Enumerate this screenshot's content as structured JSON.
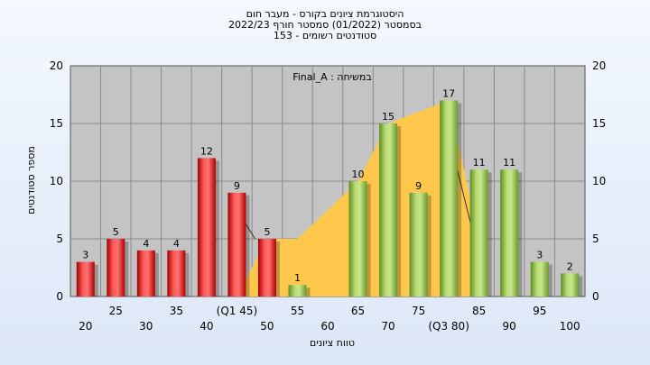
{
  "title_lines": [
    "היסטוגרמת ציונים בקורס - מעבר חום",
    "בסמסטר (01/2022) סמסטר חורף 2022/23",
    "סטודנטים רשומים - 153"
  ],
  "chart_data": {
    "type": "bar",
    "annotation": "Final_A : במשיחה",
    "xlabel": "טווח ציונים",
    "ylabel": "מספר סטודנטים",
    "ylim": [
      0,
      20
    ],
    "yticks": [
      0,
      5,
      10,
      15,
      20
    ],
    "grid": true,
    "bars": [
      {
        "x": 20,
        "value": 3,
        "label": "3",
        "color": "red"
      },
      {
        "x": 25,
        "value": 5,
        "label": "5",
        "color": "red"
      },
      {
        "x": 30,
        "value": 4,
        "label": "4",
        "color": "red"
      },
      {
        "x": 35,
        "value": 4,
        "label": "4",
        "color": "red"
      },
      {
        "x": 40,
        "value": 12,
        "label": "12",
        "color": "red"
      },
      {
        "x": 45,
        "value": 9,
        "label": "9",
        "color": "red"
      },
      {
        "x": 50,
        "value": 5,
        "label": "5",
        "color": "red"
      },
      {
        "x": 55,
        "value": 1,
        "label": "1",
        "color": "green"
      },
      {
        "x": 60,
        "value": 0,
        "label": "",
        "color": "green"
      },
      {
        "x": 65,
        "value": 10,
        "label": "10",
        "color": "green"
      },
      {
        "x": 70,
        "value": 15,
        "label": "15",
        "color": "green"
      },
      {
        "x": 75,
        "value": 9,
        "label": "9",
        "color": "green"
      },
      {
        "x": 80,
        "value": 17,
        "label": "17",
        "color": "green"
      },
      {
        "x": 85,
        "value": 11,
        "label": "11",
        "color": "green"
      },
      {
        "x": 90,
        "value": 11,
        "label": "11",
        "color": "green"
      },
      {
        "x": 95,
        "value": 3,
        "label": "3",
        "color": "green"
      },
      {
        "x": 100,
        "value": 2,
        "label": "2",
        "color": "green"
      }
    ],
    "xtick_labels": [
      "20",
      "25",
      "30",
      "35",
      "40",
      "(Q1 45)",
      "50",
      "55",
      "60",
      "65",
      "70",
      "75",
      "(Q3 80)",
      "85",
      "90",
      "95",
      "100"
    ],
    "area": {
      "color": "#ffc84d",
      "points": [
        [
          45,
          0
        ],
        [
          50,
          5
        ],
        [
          55,
          5
        ],
        [
          65,
          10
        ],
        [
          70,
          15
        ],
        [
          80,
          17
        ],
        [
          85,
          5
        ],
        [
          85,
          0
        ]
      ]
    },
    "lines": [
      {
        "points": [
          [
            45,
            7.5
          ],
          [
            48,
            5
          ]
        ]
      },
      {
        "points": [
          [
            80,
            14
          ],
          [
            84,
            5.5
          ]
        ]
      }
    ],
    "colors": {
      "red_light": "#ff6a6a",
      "red_dark": "#c80000",
      "green_light": "#c8e68a",
      "green_dark": "#6a9a2a",
      "plot_bg": "#c4c4c4",
      "grid": "#8a8a8a"
    }
  }
}
